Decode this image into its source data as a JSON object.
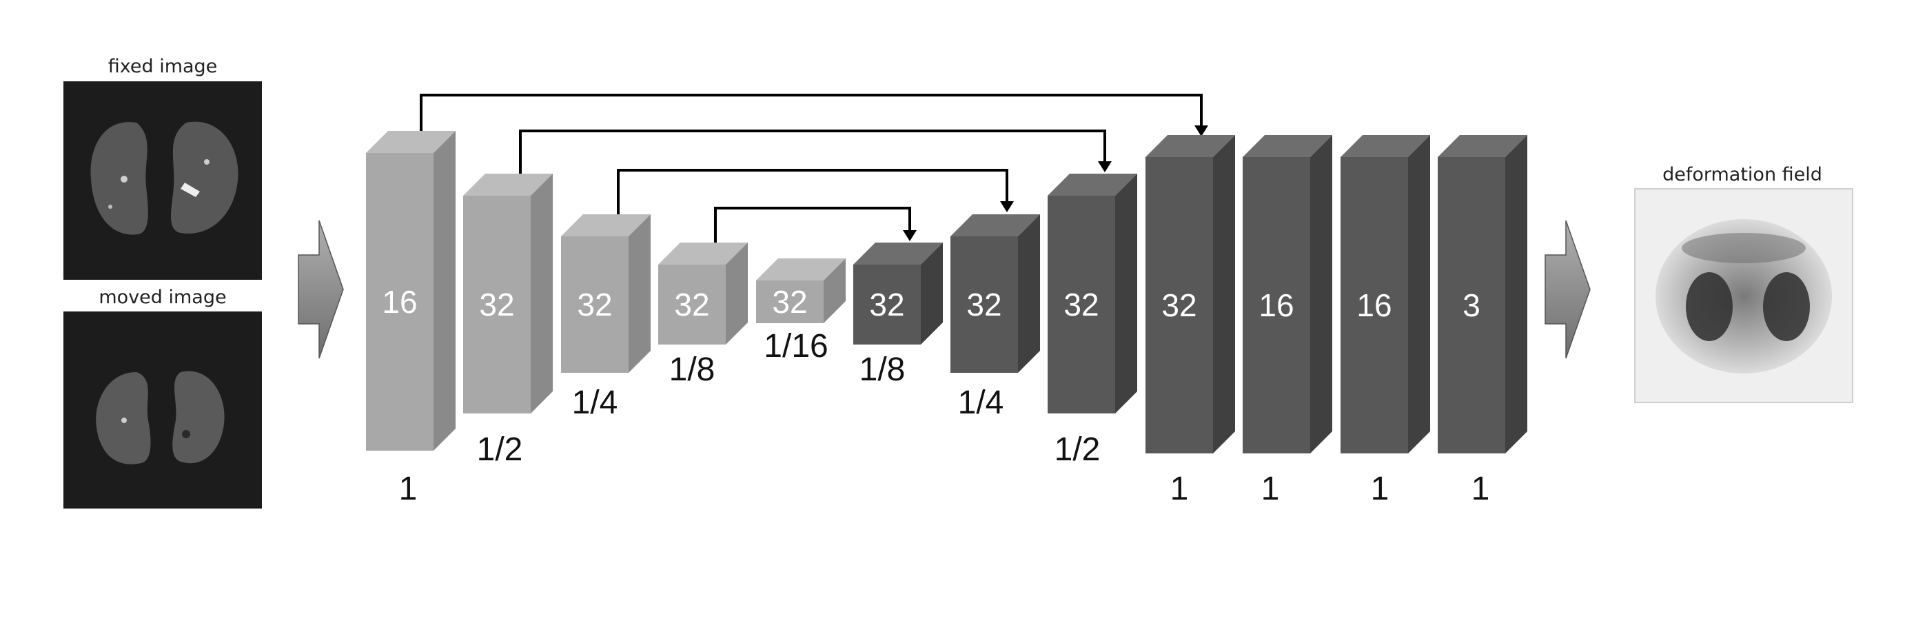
{
  "inputs": {
    "fixed_caption": "fixed image",
    "moved_caption": "moved image"
  },
  "output": {
    "caption": "deformation field"
  },
  "blocks": [
    {
      "channels": "16",
      "scale": "1"
    },
    {
      "channels": "32",
      "scale": "1/2"
    },
    {
      "channels": "32",
      "scale": "1/4"
    },
    {
      "channels": "32",
      "scale": "1/8"
    },
    {
      "channels": "32",
      "scale": "1/16"
    },
    {
      "channels": "32",
      "scale": "1/8"
    },
    {
      "channels": "32",
      "scale": "1/4"
    },
    {
      "channels": "32",
      "scale": "1/2"
    },
    {
      "channels": "32",
      "scale": "1"
    },
    {
      "channels": "16",
      "scale": "1"
    },
    {
      "channels": "16",
      "scale": "1"
    },
    {
      "channels": "3",
      "scale": "1"
    }
  ],
  "colors": {
    "encoder_front": "#a8a8a8",
    "decoder_front": "#585858",
    "arrow_fill": "#8e8e8e",
    "panel_bg": "#1c1c1c"
  }
}
